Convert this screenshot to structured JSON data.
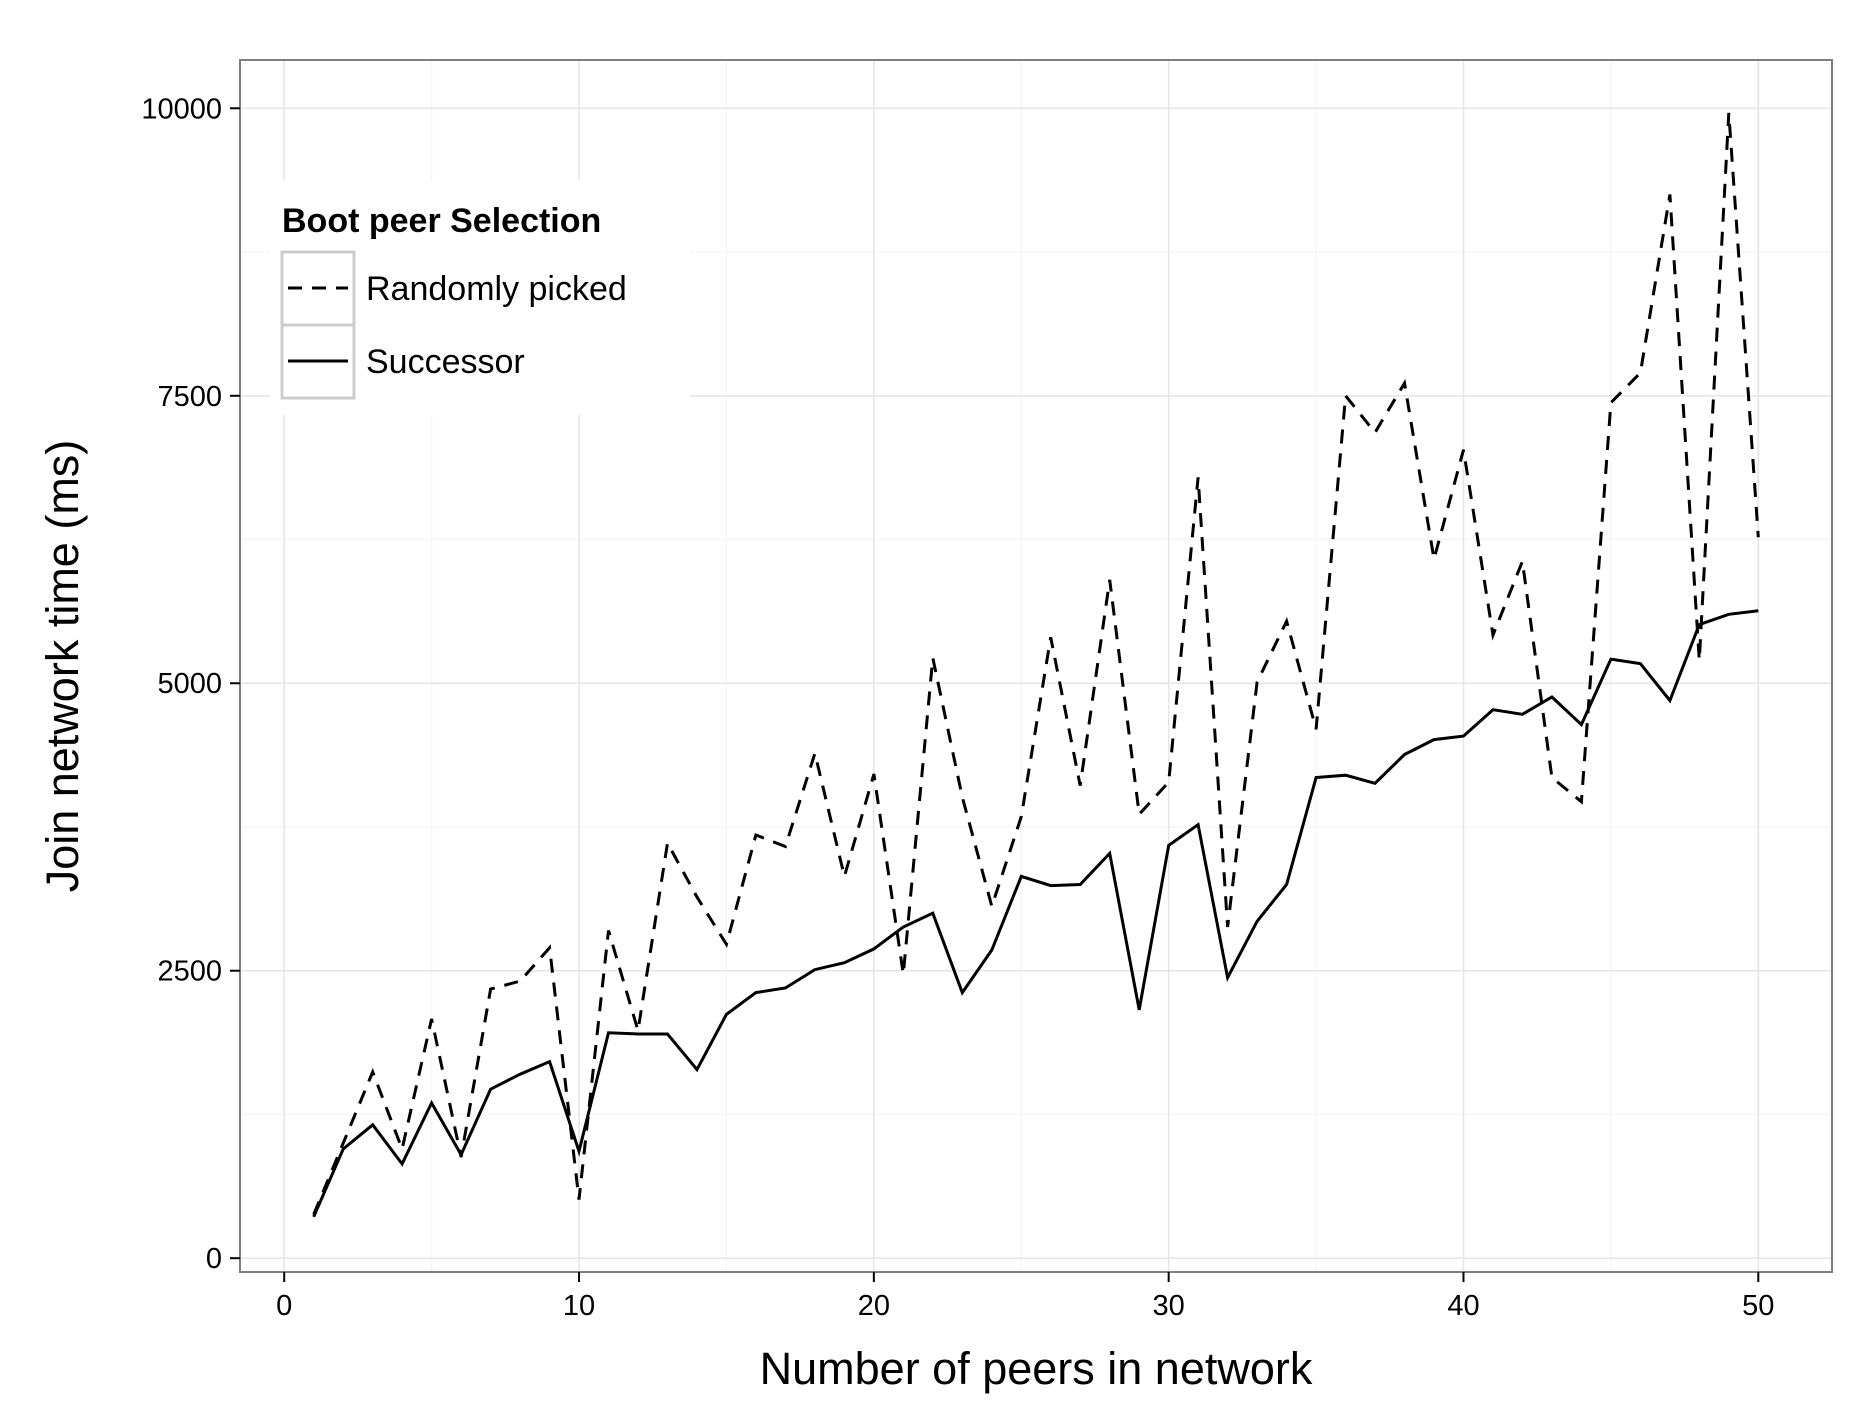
{
  "chart_data": {
    "type": "line",
    "xlabel": "Number of peers in network",
    "ylabel": "Join network time (ms)",
    "xlim": [
      -1.5,
      52.5
    ],
    "ylim": [
      -120,
      10420
    ],
    "x_ticks": [
      0,
      10,
      20,
      30,
      40,
      50
    ],
    "y_ticks": [
      0,
      2500,
      5000,
      7500,
      10000
    ],
    "x_tick_labels": [
      "0",
      "10",
      "20",
      "30",
      "40",
      "50"
    ],
    "y_tick_labels": [
      "0",
      "2500",
      "5000",
      "7500",
      "10000"
    ],
    "grid": true,
    "legend": {
      "title": "Boot peer Selection",
      "position": "top-left"
    },
    "x": [
      1,
      2,
      3,
      4,
      5,
      6,
      7,
      8,
      9,
      10,
      11,
      12,
      13,
      14,
      15,
      16,
      17,
      18,
      19,
      20,
      21,
      22,
      23,
      24,
      25,
      26,
      27,
      28,
      29,
      30,
      31,
      32,
      33,
      34,
      35,
      36,
      37,
      38,
      39,
      40,
      41,
      42,
      43,
      44,
      45,
      46,
      47,
      48,
      49,
      50
    ],
    "series": [
      {
        "name": "Randomly picked",
        "dash": "dashed",
        "color": "#000000",
        "values": [
          380,
          1000,
          1620,
          950,
          2080,
          880,
          2340,
          2410,
          2700,
          510,
          2850,
          1980,
          3610,
          3140,
          2730,
          3680,
          3580,
          4390,
          3320,
          4210,
          2470,
          5220,
          4010,
          3060,
          3840,
          5400,
          4110,
          5900,
          3860,
          4140,
          6790,
          2880,
          5010,
          5540,
          4600,
          7500,
          7180,
          7610,
          6080,
          7030,
          5420,
          6060,
          4180,
          3970,
          7440,
          7700,
          9250,
          5200,
          9960,
          6270
        ]
      },
      {
        "name": "Successor",
        "dash": "solid",
        "color": "#000000",
        "values": [
          360,
          950,
          1160,
          820,
          1350,
          900,
          1470,
          1600,
          1710,
          930,
          1960,
          1950,
          1950,
          1640,
          2120,
          2310,
          2350,
          2510,
          2570,
          2690,
          2880,
          3000,
          2310,
          2680,
          3320,
          3240,
          3250,
          3520,
          2160,
          3590,
          3770,
          2440,
          2930,
          3250,
          4180,
          4200,
          4130,
          4380,
          4510,
          4540,
          4770,
          4730,
          4880,
          4640,
          5210,
          5170,
          4850,
          5510,
          5600,
          5630
        ]
      }
    ]
  }
}
